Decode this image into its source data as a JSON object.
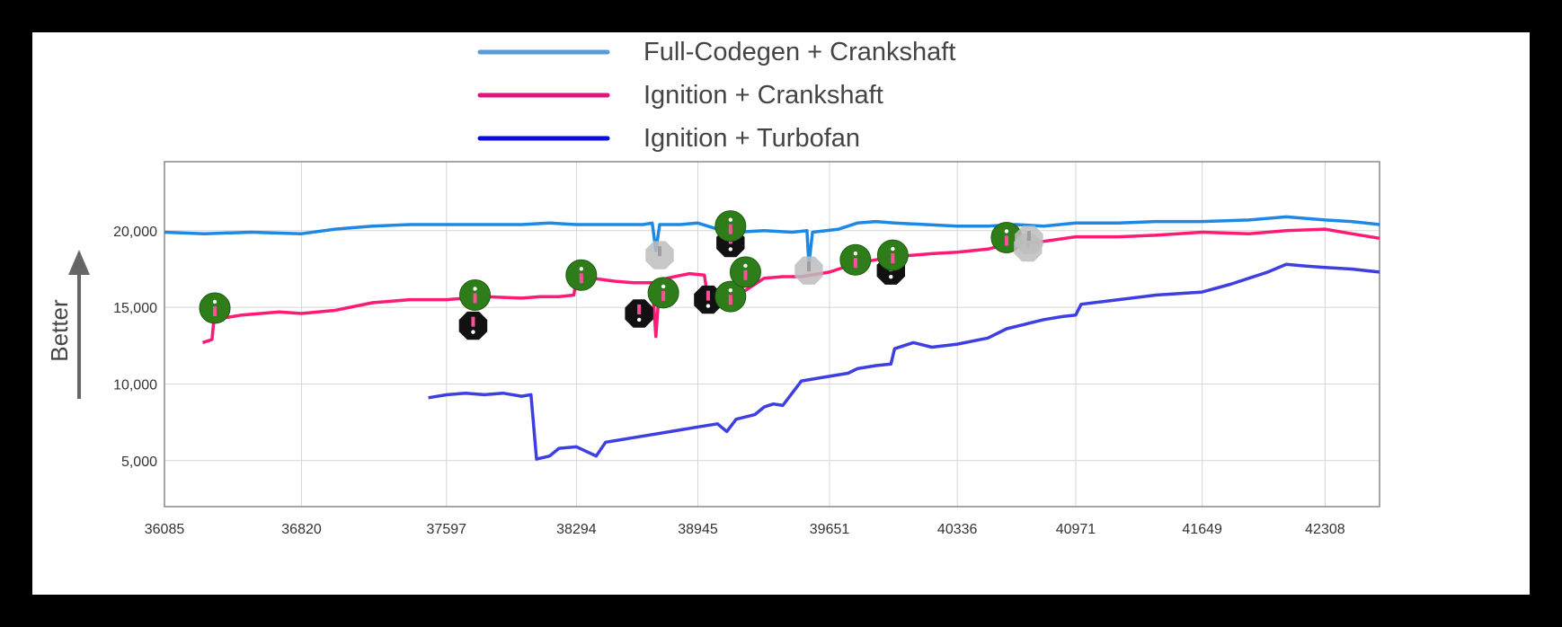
{
  "chart_data": {
    "type": "line",
    "title": "",
    "xlabel": "",
    "ylabel": "Better",
    "xlim": [
      36085,
      42600
    ],
    "ylim": [
      2000,
      24500
    ],
    "x_ticks": [
      36085,
      36820,
      37597,
      38294,
      38945,
      39651,
      40336,
      40971,
      41649,
      42308
    ],
    "y_ticks": [
      5000,
      10000,
      15000,
      20000
    ],
    "y_tick_labels": [
      "5,000",
      "10,000",
      "15,000",
      "20,000"
    ],
    "x_tick_labels": [
      "36085",
      "36820",
      "37597",
      "38294",
      "38945",
      "39651",
      "40336",
      "40971",
      "41649",
      "42308"
    ],
    "grid": true,
    "legend_position": "top-center",
    "series": [
      {
        "name": "Full-Codegen + Crankshaft",
        "color": "#1e88e5",
        "legend_color": "#5b9bd5",
        "x": [
          36085,
          36300,
          36550,
          36820,
          37000,
          37200,
          37400,
          37597,
          37800,
          38000,
          38150,
          38294,
          38500,
          38650,
          38700,
          38720,
          38740,
          38850,
          38945,
          39050,
          39150,
          39300,
          39450,
          39530,
          39540,
          39560,
          39700,
          39800,
          39900,
          40000,
          40336,
          40500,
          40650,
          40800,
          40971,
          41200,
          41400,
          41649,
          41900,
          42100,
          42308,
          42450,
          42600
        ],
        "y": [
          19900,
          19800,
          19900,
          19800,
          20100,
          20300,
          20400,
          20400,
          20400,
          20400,
          20500,
          20400,
          20400,
          20400,
          20500,
          18700,
          20400,
          20400,
          20500,
          20100,
          19900,
          20000,
          19900,
          20000,
          17800,
          19900,
          20100,
          20500,
          20600,
          20500,
          20300,
          20300,
          20400,
          20300,
          20500,
          20500,
          20600,
          20600,
          20700,
          20900,
          20700,
          20600,
          20400
        ]
      },
      {
        "name": "Ignition + Crankshaft",
        "color": "#ff1a75",
        "legend_color": "#e0157a",
        "x": [
          36290,
          36340,
          36350,
          36500,
          36700,
          36820,
          37000,
          37200,
          37400,
          37597,
          37800,
          38000,
          38100,
          38200,
          38280,
          38294,
          38320,
          38500,
          38600,
          38700,
          38720,
          38740,
          38780,
          38900,
          38980,
          39000,
          39100,
          39200,
          39300,
          39400,
          39500,
          39600,
          39651,
          39800,
          40000,
          40200,
          40336,
          40500,
          40600,
          40800,
          40971,
          41200,
          41400,
          41649,
          41900,
          42100,
          42308,
          42450,
          42600
        ],
        "y": [
          12700,
          12900,
          14200,
          14500,
          14700,
          14600,
          14800,
          15300,
          15500,
          15500,
          15700,
          15600,
          15700,
          15700,
          15800,
          16900,
          17000,
          16700,
          16600,
          16600,
          13100,
          16600,
          16900,
          17200,
          17100,
          15400,
          16000,
          16100,
          16900,
          17000,
          17000,
          17200,
          17300,
          17900,
          18300,
          18500,
          18600,
          18800,
          19100,
          19300,
          19600,
          19600,
          19700,
          19900,
          19800,
          20000,
          20100,
          19800,
          19500
        ]
      },
      {
        "name": "Ignition + Turbofan",
        "color": "#3d3fe0",
        "legend_color": "#0b0be0",
        "x": [
          37500,
          37600,
          37700,
          37800,
          37900,
          38000,
          38050,
          38080,
          38150,
          38200,
          38294,
          38400,
          38450,
          38500,
          38600,
          38800,
          38945,
          39050,
          39100,
          39150,
          39250,
          39300,
          39350,
          39400,
          39500,
          39600,
          39651,
          39750,
          39800,
          39900,
          39980,
          40000,
          40100,
          40200,
          40336,
          40500,
          40600,
          40700,
          40800,
          40900,
          40971,
          41000,
          41200,
          41400,
          41649,
          41800,
          41900,
          42000,
          42100,
          42200,
          42308,
          42450,
          42600
        ],
        "y": [
          9100,
          9300,
          9400,
          9300,
          9400,
          9200,
          9300,
          5100,
          5300,
          5800,
          5900,
          5300,
          6200,
          6300,
          6500,
          6900,
          7200,
          7400,
          6900,
          7700,
          8000,
          8500,
          8700,
          8600,
          10200,
          10400,
          10500,
          10700,
          11000,
          11200,
          11300,
          12300,
          12700,
          12400,
          12600,
          13000,
          13600,
          13900,
          14200,
          14400,
          14500,
          15200,
          15500,
          15800,
          16000,
          16500,
          16900,
          17300,
          17800,
          17700,
          17600,
          17500,
          17300
        ]
      }
    ],
    "markers": [
      {
        "type": "info",
        "x": 36355,
        "y": 14950
      },
      {
        "type": "info",
        "x": 37750,
        "y": 15800
      },
      {
        "type": "alert",
        "x": 37740,
        "y": 13800
      },
      {
        "type": "info",
        "x": 38320,
        "y": 17100
      },
      {
        "type": "alert",
        "x": 38630,
        "y": 14600
      },
      {
        "type": "info",
        "x": 38760,
        "y": 15950
      },
      {
        "type": "muted",
        "x": 38740,
        "y": 18400
      },
      {
        "type": "alert",
        "x": 39000,
        "y": 15500
      },
      {
        "type": "alert",
        "x": 39120,
        "y": 19200
      },
      {
        "type": "info",
        "x": 39120,
        "y": 20300
      },
      {
        "type": "info",
        "x": 39120,
        "y": 15700
      },
      {
        "type": "info",
        "x": 39200,
        "y": 17300
      },
      {
        "type": "muted",
        "x": 39540,
        "y": 17400
      },
      {
        "type": "info",
        "x": 39790,
        "y": 18100
      },
      {
        "type": "alert",
        "x": 39980,
        "y": 17400
      },
      {
        "type": "info",
        "x": 39990,
        "y": 18400
      },
      {
        "type": "info",
        "x": 40600,
        "y": 19550
      },
      {
        "type": "muted",
        "x": 40715,
        "y": 18900
      },
      {
        "type": "muted",
        "x": 40720,
        "y": 19400
      }
    ]
  }
}
